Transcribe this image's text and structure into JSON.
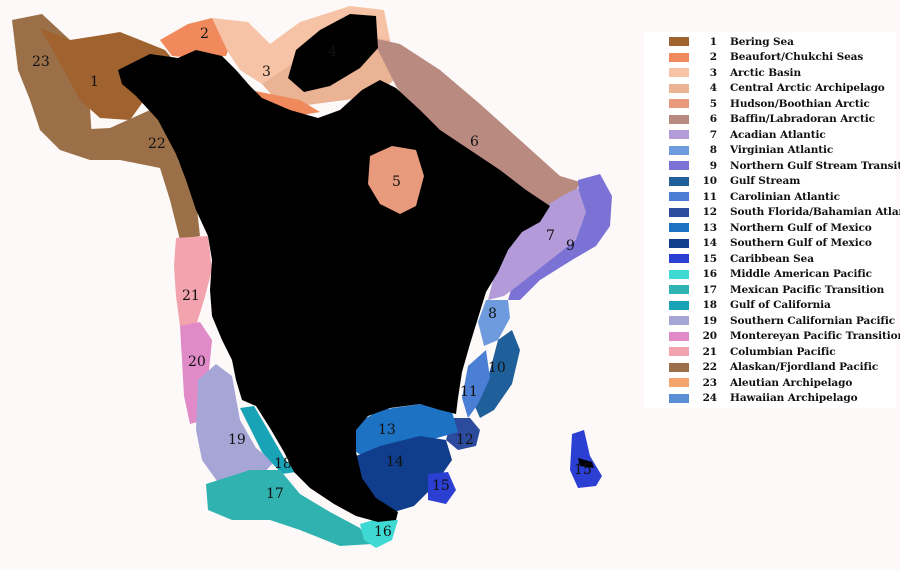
{
  "ecoregions": [
    {
      "number": "1",
      "name": "Bering Sea",
      "color": "#a0622e"
    },
    {
      "number": "2",
      "name": "Beaufort/Chukchi Seas",
      "color": "#f08a5c"
    },
    {
      "number": "3",
      "name": "Arctic Basin",
      "color": "#f6c3a6"
    },
    {
      "number": "4",
      "name": "Central Arctic Archipelago",
      "color": "#e9b394"
    },
    {
      "number": "5",
      "name": "Hudson/Boothian Arctic",
      "color": "#e89a7c"
    },
    {
      "number": "6",
      "name": "Baffin/Labradoran Arctic",
      "color": "#b98a80"
    },
    {
      "number": "7",
      "name": "Acadian Atlantic",
      "color": "#b39ad8"
    },
    {
      "number": "8",
      "name": "Virginian Atlantic",
      "color": "#6e9bde"
    },
    {
      "number": "9",
      "name": "Northern Gulf Stream Transition",
      "color": "#7a72d4"
    },
    {
      "number": "10",
      "name": "Gulf Stream",
      "color": "#1f5f9a"
    },
    {
      "number": "11",
      "name": "Carolinian Atlantic",
      "color": "#4b7fd6"
    },
    {
      "number": "12",
      "name": "South Florida/Bahamian Atlantic",
      "color": "#2d4b9c"
    },
    {
      "number": "13",
      "name": "Northern Gulf of Mexico",
      "color": "#1d72c4"
    },
    {
      "number": "14",
      "name": "Southern Gulf of Mexico",
      "color": "#113e8c"
    },
    {
      "number": "15",
      "name": "Caribbean Sea",
      "color": "#2b3fd2"
    },
    {
      "number": "16",
      "name": "Middle American Pacific",
      "color": "#3fd9d3"
    },
    {
      "number": "17",
      "name": "Mexican Pacific Transition",
      "color": "#30b3b0"
    },
    {
      "number": "18",
      "name": "Gulf of California",
      "color": "#19a3b6"
    },
    {
      "number": "19",
      "name": "Southern Californian Pacific",
      "color": "#a6a6d6"
    },
    {
      "number": "20",
      "name": "Montereyan Pacific Transition",
      "color": "#e08ac8"
    },
    {
      "number": "21",
      "name": "Columbian Pacific",
      "color": "#f2a3ad"
    },
    {
      "number": "22",
      "name": "Alaskan/Fjordland Pacific",
      "color": "#9b7048"
    },
    {
      "number": "23",
      "name": "Aleutian Archipelago",
      "color": "#f6a46e"
    },
    {
      "number": "24",
      "name": "Hawaiian Archipelago",
      "color": "#5a8fd6"
    }
  ],
  "map_labels": {
    "r1": "1",
    "r2": "2",
    "r3": "3",
    "r4": "4",
    "r5": "5",
    "r6": "6",
    "r7": "7",
    "r8": "8",
    "r9": "9",
    "r10": "10",
    "r11": "11",
    "r12": "12",
    "r13": "13",
    "r14": "14",
    "r15a": "15",
    "r15b": "15",
    "r16": "16",
    "r17": "17",
    "r18": "18",
    "r19": "19",
    "r20": "20",
    "r21": "21",
    "r22": "22",
    "r23": "23"
  },
  "land_color": "#000000"
}
